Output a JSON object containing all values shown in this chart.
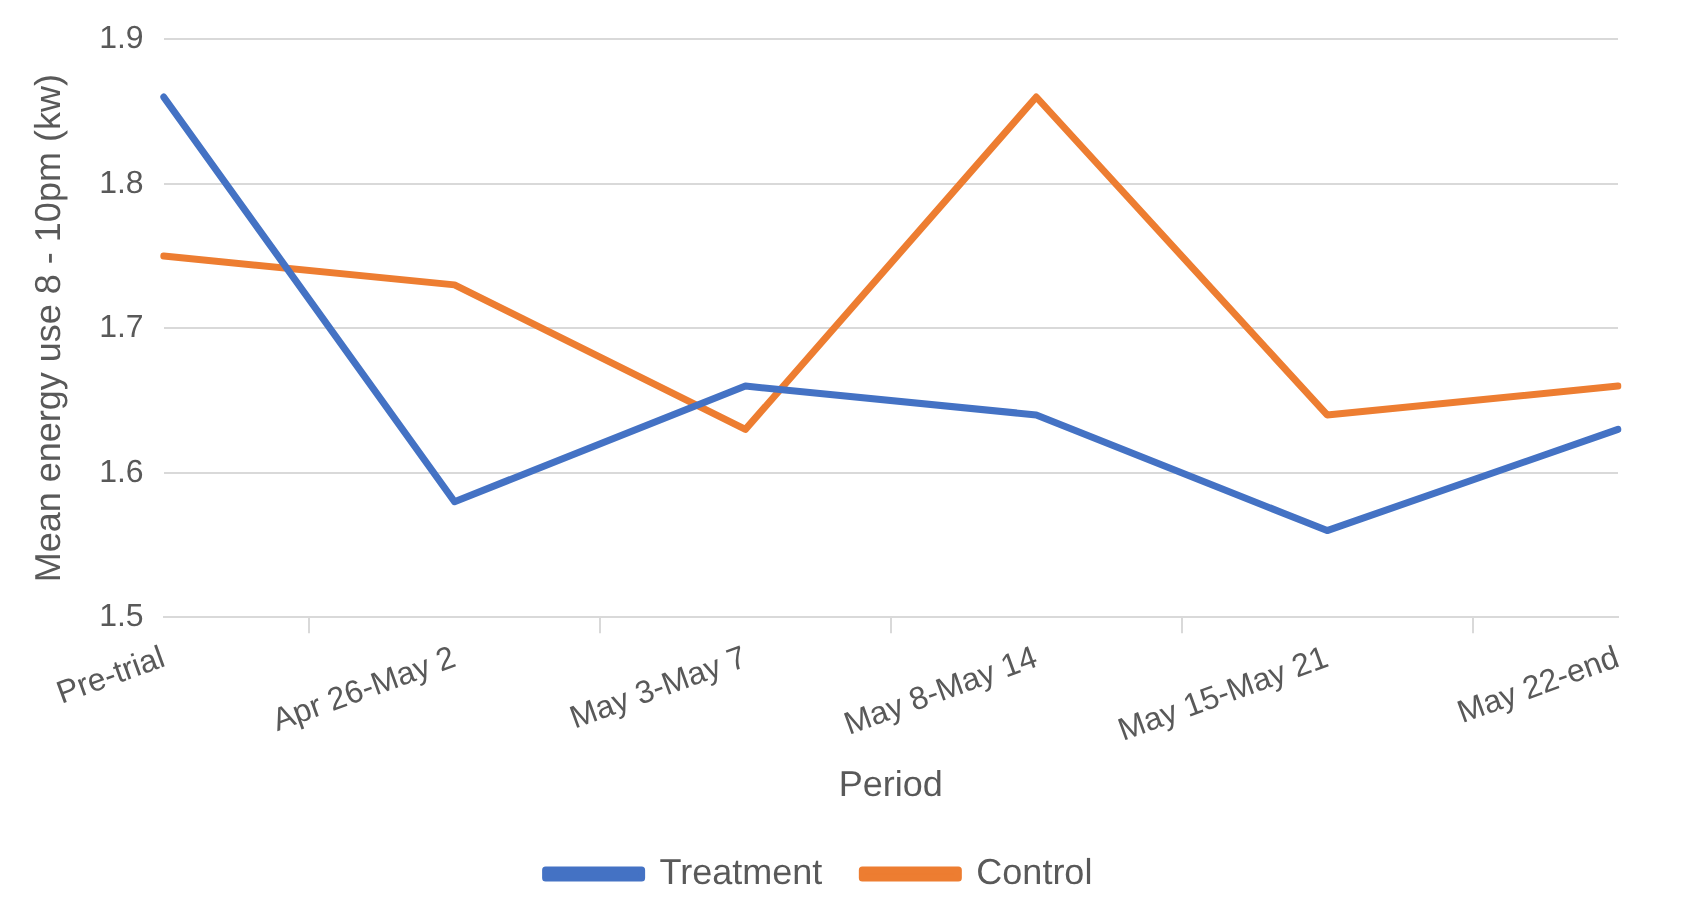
{
  "chart_data": {
    "type": "line",
    "xlabel": "Period",
    "ylabel": "Mean energy use 8 - 10pm (kw)",
    "categories": [
      "Pre-trial",
      "Apr 26-May 2",
      "May 3-May 7",
      "May 8-May 14",
      "May 15-May 21",
      "May 22-end"
    ],
    "series": [
      {
        "name": "Treatment",
        "color": "#4472c4",
        "values": [
          1.86,
          1.58,
          1.66,
          1.64,
          1.56,
          1.63
        ]
      },
      {
        "name": "Control",
        "color": "#ed7d31",
        "values": [
          1.75,
          1.73,
          1.63,
          1.86,
          1.64,
          1.66
        ]
      }
    ],
    "ylim": [
      1.5,
      1.9
    ],
    "yticks": [
      1.5,
      1.6,
      1.7,
      1.8,
      1.9
    ],
    "grid": "y",
    "legend": "bottom",
    "marker": "none",
    "line_style": "solid"
  }
}
